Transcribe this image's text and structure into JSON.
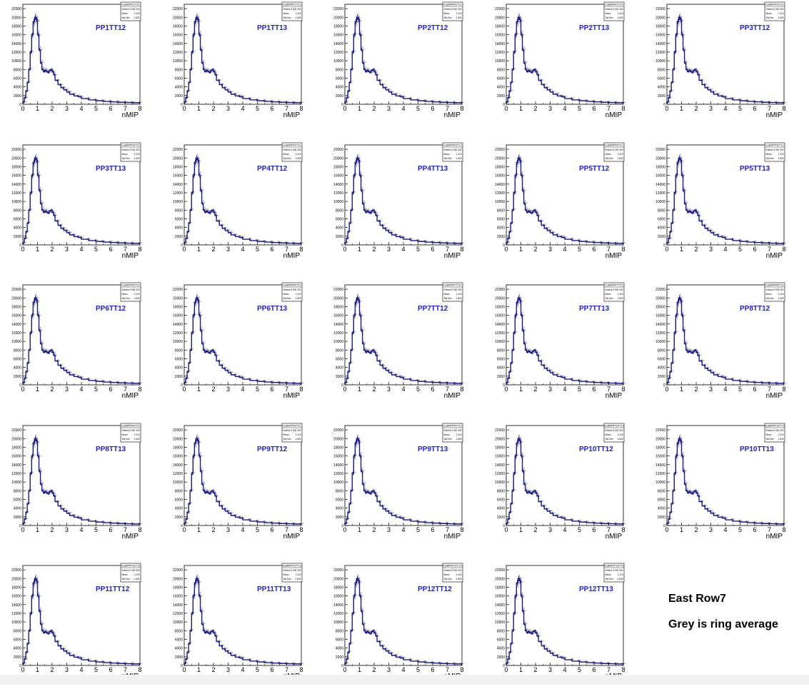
{
  "page": {
    "note_row": "East Row7",
    "note_grey": "Grey is ring average"
  },
  "stats_labels": {
    "entries": "Entries",
    "mean": "Mean",
    "stddev": "Std Dev"
  },
  "stats_values": {
    "entries": "9 000 300",
    "mean": "2.119",
    "stddev": "1.825"
  },
  "colors": {
    "histogram": "#1a1a8c",
    "ring_average": "#b8b8b8",
    "title": "#2222dd",
    "axis": "#000000"
  },
  "chart_data": {
    "type": "line",
    "xlabel": "nMIP",
    "xlim": [
      0,
      8
    ],
    "ylim": [
      0,
      23000
    ],
    "xticks": [
      "0",
      "1",
      "2",
      "3",
      "4",
      "5",
      "6",
      "7",
      "8"
    ],
    "yticks": [
      "0",
      "2000",
      "4000",
      "6000",
      "8000",
      "10000",
      "12000",
      "14000",
      "16000",
      "18000",
      "20000",
      "22000"
    ],
    "x": [
      0.1,
      0.2,
      0.3,
      0.4,
      0.5,
      0.6,
      0.7,
      0.8,
      0.9,
      1.0,
      1.1,
      1.2,
      1.3,
      1.4,
      1.5,
      1.6,
      1.7,
      1.8,
      1.9,
      2.0,
      2.1,
      2.2,
      2.4,
      2.6,
      2.8,
      3.0,
      3.2,
      3.5,
      3.8,
      4.0,
      4.5,
      5.0,
      5.5,
      6.0,
      6.5,
      7.0,
      7.5,
      8.0
    ],
    "series_values": [
      500,
      1500,
      3000,
      5000,
      8000,
      12000,
      16000,
      19000,
      20000,
      19500,
      16000,
      12500,
      9500,
      8000,
      7500,
      7800,
      7500,
      7300,
      7800,
      8000,
      7500,
      6800,
      5500,
      4500,
      3800,
      3300,
      2800,
      2300,
      1900,
      1700,
      1300,
      1000,
      800,
      650,
      550,
      450,
      400,
      350
    ],
    "grey_values": [
      600,
      1600,
      3200,
      5200,
      8200,
      12200,
      16200,
      19000,
      19800,
      19200,
      16000,
      12600,
      9700,
      8200,
      7700,
      7900,
      7700,
      7500,
      7800,
      7900,
      7400,
      6800,
      5600,
      4600,
      3900,
      3400,
      2900,
      2400,
      2000,
      1800,
      1400,
      1100,
      900,
      750,
      650,
      550,
      500,
      450
    ],
    "panels": [
      {
        "title": "PP1TT12",
        "stats_name": "hcalMIPPP1TT12"
      },
      {
        "title": "PP1TT13",
        "stats_name": "hcalMIPPP1TT13"
      },
      {
        "title": "PP2TT12",
        "stats_name": "hcalMIPPP2TT12"
      },
      {
        "title": "PP2TT13",
        "stats_name": "hcalMIPPP2TT13"
      },
      {
        "title": "PP3TT12",
        "stats_name": "hcalMIPPP3TT12"
      },
      {
        "title": "PP3TT13",
        "stats_name": "hcalMIPPP3TT13"
      },
      {
        "title": "PP4TT12",
        "stats_name": "hcalMIPPP4TT12"
      },
      {
        "title": "PP4TT13",
        "stats_name": "hcalMIPPP4TT13"
      },
      {
        "title": "PP5TT12",
        "stats_name": "hcalMIPPP5TT12"
      },
      {
        "title": "PP5TT13",
        "stats_name": "hcalMIPPP5TT13"
      },
      {
        "title": "PP6TT12",
        "stats_name": "hcalMIPPP6TT12"
      },
      {
        "title": "PP6TT13",
        "stats_name": "hcalMIPPP6TT13"
      },
      {
        "title": "PP7TT12",
        "stats_name": "hcalMIPPP7TT12"
      },
      {
        "title": "PP7TT13",
        "stats_name": "hcalMIPPP7TT13"
      },
      {
        "title": "PP8TT12",
        "stats_name": "hcalMIPPP8TT12"
      },
      {
        "title": "PP8TT13",
        "stats_name": "hcalMIPPP8TT13"
      },
      {
        "title": "PP9TT12",
        "stats_name": "hcalMIPPP9TT12"
      },
      {
        "title": "PP9TT13",
        "stats_name": "hcalMIPPP9TT13"
      },
      {
        "title": "PP10TT12",
        "stats_name": "hcalMIPPP10TT12"
      },
      {
        "title": "PP10TT13",
        "stats_name": "hcalMIPPP10TT13"
      },
      {
        "title": "PP11TT12",
        "stats_name": "hcalMIPPP11TT12"
      },
      {
        "title": "PP11TT13",
        "stats_name": "hcalMIPPP11TT13"
      },
      {
        "title": "PP12TT12",
        "stats_name": "hcalMIPPP12TT12"
      },
      {
        "title": "PP12TT13",
        "stats_name": "hcalMIPPP12TT13"
      }
    ]
  }
}
